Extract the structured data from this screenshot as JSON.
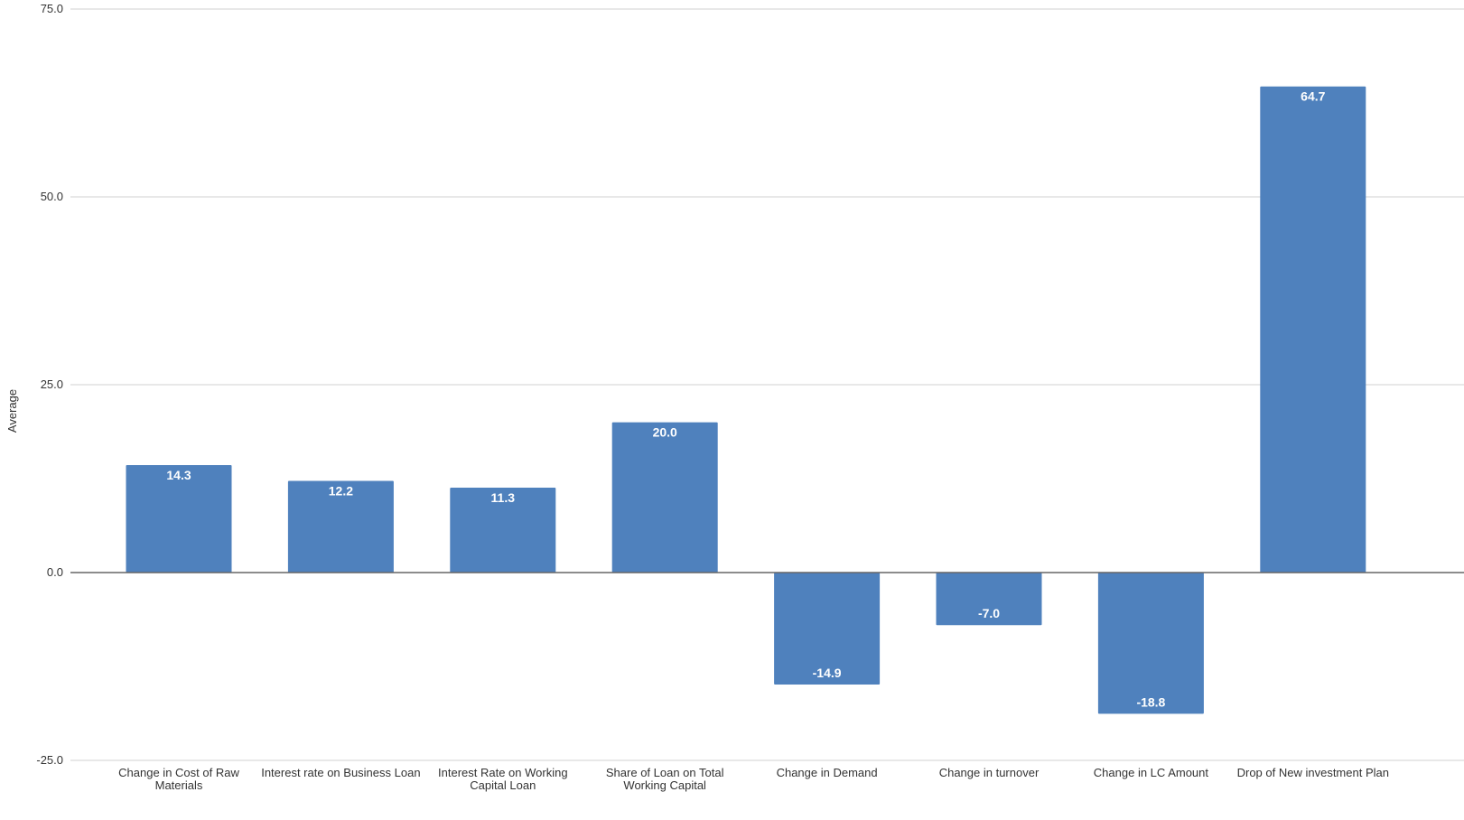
{
  "chart_data": {
    "type": "bar",
    "categories": [
      "Change in Cost of Raw Materials",
      "Interest rate on Business Loan",
      "Interest Rate on Working Capital Loan",
      "Share of Loan on Total Working Capital",
      "Change in Demand",
      "Change in turnover",
      "Change in LC Amount",
      "Drop of New investment Plan"
    ],
    "category_lines": [
      [
        "Change in Cost of Raw",
        "Materials"
      ],
      [
        "Interest rate on Business Loan"
      ],
      [
        "Interest Rate on Working",
        "Capital Loan"
      ],
      [
        "Share of Loan on Total",
        "Working Capital"
      ],
      [
        "Change in Demand"
      ],
      [
        "Change in turnover"
      ],
      [
        "Change in LC Amount"
      ],
      [
        "Drop of New investment Plan"
      ]
    ],
    "values": [
      14.3,
      12.2,
      11.3,
      20.0,
      -14.9,
      -7.0,
      -18.8,
      64.7
    ],
    "value_labels": [
      "14.3",
      "12.2",
      "11.3",
      "20.0",
      "-14.9",
      "-7.0",
      "-18.8",
      "64.7"
    ],
    "title": "",
    "xlabel": "",
    "ylabel": "Average",
    "ylim": [
      -25,
      75
    ],
    "yticks": [
      -25,
      0,
      25,
      50,
      75
    ],
    "ytick_labels": [
      "-25.0",
      "0.0",
      "25.0",
      "50.0",
      "75.0"
    ],
    "grid": true,
    "legend": "none",
    "colors": {
      "bar": "#4f81bd",
      "grid": "#d9d9d9",
      "zero_line": "#666666",
      "label_text": "#ffffff",
      "axis_text": "#333333"
    }
  }
}
